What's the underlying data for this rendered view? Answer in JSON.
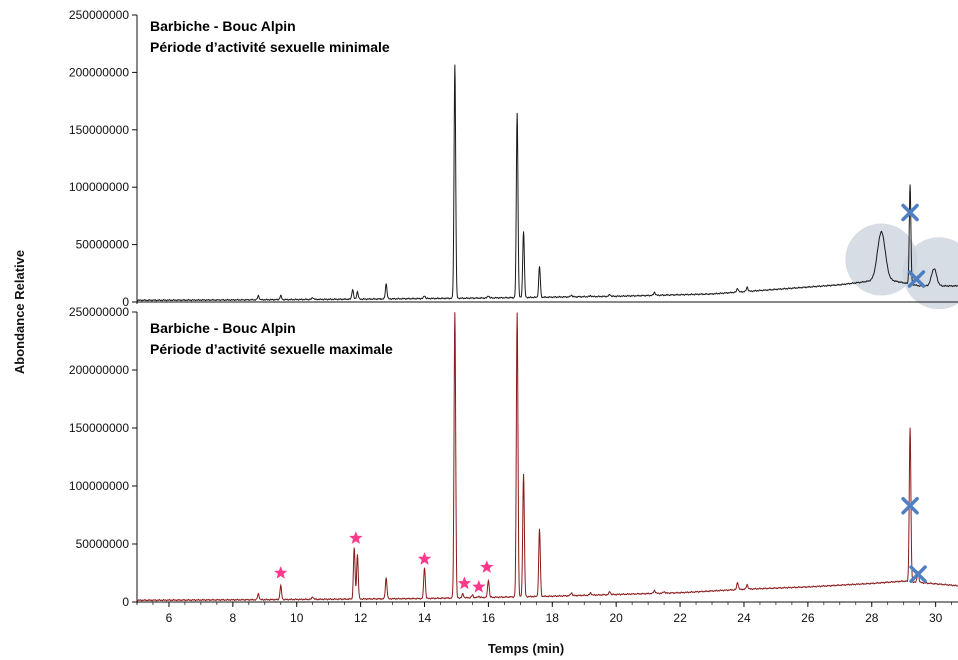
{
  "colors": {
    "top_trace": "#1a1a1a",
    "bottom_trace": "#8b1a1a",
    "title_text": "#1f3a5a",
    "star_marker": "#ff3a8c",
    "x_marker": "#4f7fc2",
    "highlight_circle": "#c9d1dc"
  },
  "chart_data": [
    {
      "type": "line",
      "title": "Barbiche - Bouc Alpin",
      "subtitle": "Période d’activité sexuelle minimale",
      "xlabel": "Temps (min)",
      "ylabel": "Abondance Relative",
      "xlim": [
        5,
        30.7
      ],
      "ylim": [
        0,
        250000000
      ],
      "yticks": [
        0,
        50000000,
        100000000,
        150000000,
        200000000,
        250000000
      ],
      "baseline": [
        [
          5,
          1500000
        ],
        [
          8,
          1800000
        ],
        [
          12,
          2500000
        ],
        [
          16,
          3500000
        ],
        [
          20,
          5000000
        ],
        [
          23,
          7000000
        ],
        [
          25,
          11000000
        ],
        [
          27,
          15000000
        ],
        [
          27.6,
          17000000
        ],
        [
          28.4,
          20000000
        ],
        [
          29.5,
          14000000
        ],
        [
          30.7,
          14000000
        ]
      ],
      "peaks": [
        {
          "x": 8.8,
          "y": 5500000
        },
        {
          "x": 9.5,
          "y": 5500000
        },
        {
          "x": 10.5,
          "y": 4000000
        },
        {
          "x": 11.75,
          "y": 11000000
        },
        {
          "x": 11.9,
          "y": 9000000
        },
        {
          "x": 12.8,
          "y": 16000000
        },
        {
          "x": 14.0,
          "y": 5500000
        },
        {
          "x": 14.95,
          "y": 207000000
        },
        {
          "x": 16.0,
          "y": 5500000
        },
        {
          "x": 16.9,
          "y": 165000000
        },
        {
          "x": 17.1,
          "y": 62000000
        },
        {
          "x": 17.6,
          "y": 31000000
        },
        {
          "x": 18.6,
          "y": 6000000
        },
        {
          "x": 19.2,
          "y": 5500000
        },
        {
          "x": 19.8,
          "y": 6500000
        },
        {
          "x": 21.2,
          "y": 8500000
        },
        {
          "x": 23.8,
          "y": 12000000
        },
        {
          "x": 24.1,
          "y": 13000000
        },
        {
          "x": 28.3,
          "y": 61000000
        },
        {
          "x": 29.2,
          "y": 102000000
        },
        {
          "x": 29.95,
          "y": 29000000
        }
      ],
      "markers": [
        {
          "shape": "x",
          "x": 29.2,
          "y": 78000000
        },
        {
          "shape": "x",
          "x": 29.4,
          "y": 20000000
        }
      ],
      "highlights": [
        {
          "x": 28.3,
          "y": 37000000
        },
        {
          "x": 30.1,
          "y": 25000000
        }
      ]
    },
    {
      "type": "line",
      "title": "Barbiche - Bouc Alpin",
      "subtitle": "Période d’activité sexuelle maximale",
      "xlabel": "Temps (min)",
      "ylabel": "Abondance Relative",
      "xlim": [
        5,
        30.7
      ],
      "ylim": [
        0,
        250000000
      ],
      "yticks": [
        0,
        50000000,
        100000000,
        150000000,
        200000000,
        250000000
      ],
      "xticks": [
        6,
        8,
        10,
        12,
        14,
        16,
        18,
        20,
        22,
        24,
        26,
        28,
        30
      ],
      "baseline": [
        [
          5,
          1500000
        ],
        [
          9,
          2000000
        ],
        [
          14,
          3000000
        ],
        [
          18,
          5000000
        ],
        [
          22,
          8000000
        ],
        [
          24,
          11000000
        ],
        [
          26,
          13000000
        ],
        [
          28,
          16000000
        ],
        [
          29,
          18000000
        ],
        [
          30.7,
          14000000
        ]
      ],
      "peaks": [
        {
          "x": 8.8,
          "y": 7000000
        },
        {
          "x": 9.5,
          "y": 14000000
        },
        {
          "x": 10.5,
          "y": 4500000
        },
        {
          "x": 11.8,
          "y": 47000000
        },
        {
          "x": 11.9,
          "y": 41000000
        },
        {
          "x": 12.8,
          "y": 21000000
        },
        {
          "x": 14.0,
          "y": 30000000
        },
        {
          "x": 14.95,
          "y": 250000000
        },
        {
          "x": 15.2,
          "y": 7000000
        },
        {
          "x": 15.5,
          "y": 6000000
        },
        {
          "x": 15.7,
          "y": 5000000
        },
        {
          "x": 16.0,
          "y": 19000000
        },
        {
          "x": 16.9,
          "y": 250000000
        },
        {
          "x": 17.1,
          "y": 111000000
        },
        {
          "x": 17.6,
          "y": 63000000
        },
        {
          "x": 18.6,
          "y": 8000000
        },
        {
          "x": 19.2,
          "y": 8000000
        },
        {
          "x": 19.8,
          "y": 9000000
        },
        {
          "x": 21.2,
          "y": 10000000
        },
        {
          "x": 21.5,
          "y": 9000000
        },
        {
          "x": 23.8,
          "y": 17000000
        },
        {
          "x": 24.1,
          "y": 15000000
        },
        {
          "x": 29.2,
          "y": 150000000
        },
        {
          "x": 29.45,
          "y": 26000000
        }
      ],
      "markers": [
        {
          "shape": "star",
          "x": 9.5,
          "y": 25000000
        },
        {
          "shape": "star",
          "x": 11.85,
          "y": 55000000
        },
        {
          "shape": "star",
          "x": 14.0,
          "y": 37000000
        },
        {
          "shape": "star",
          "x": 15.25,
          "y": 16000000
        },
        {
          "shape": "star",
          "x": 15.7,
          "y": 13000000
        },
        {
          "shape": "star",
          "x": 15.95,
          "y": 30000000
        },
        {
          "shape": "x",
          "x": 29.2,
          "y": 83000000
        },
        {
          "shape": "x",
          "x": 29.45,
          "y": 24000000
        }
      ]
    }
  ]
}
